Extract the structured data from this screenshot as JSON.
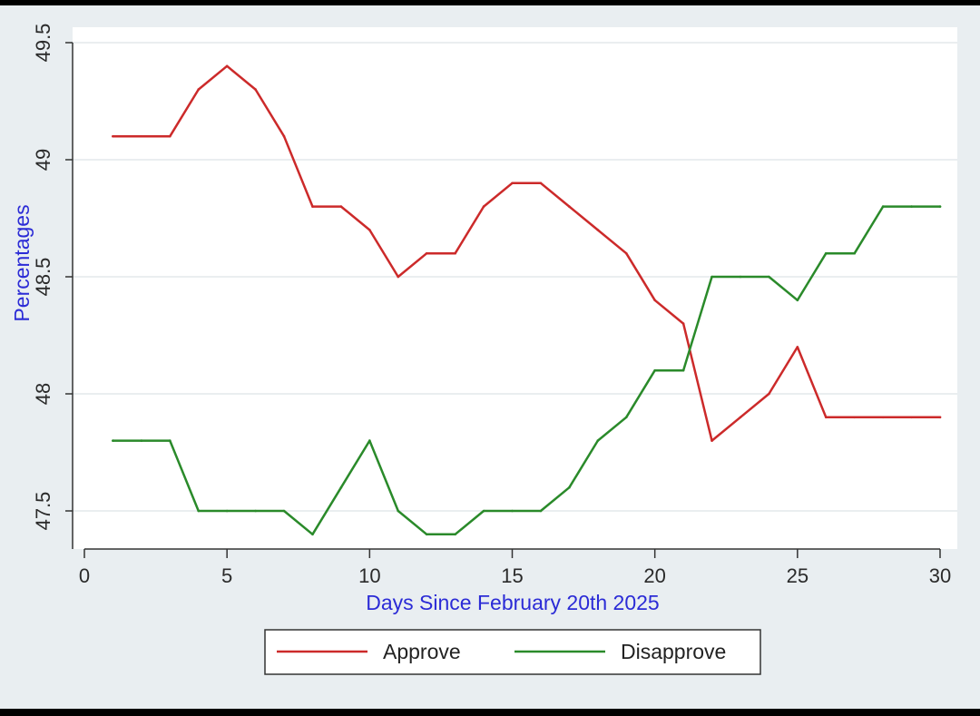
{
  "chart_data": {
    "type": "line",
    "title": "",
    "xlabel": "Days Since February 20th 2025",
    "ylabel": "Percentages",
    "xlim": [
      0,
      30
    ],
    "ylim": [
      47.35,
      49.55
    ],
    "xticks": [
      0,
      5,
      10,
      15,
      20,
      25,
      30
    ],
    "xtick_labels": [
      "0",
      "5",
      "10",
      "15",
      "20",
      "25",
      "30"
    ],
    "yticks": [
      47.5,
      48,
      48.5,
      49,
      49.5
    ],
    "ytick_labels": [
      "47.5",
      "48",
      "48.5",
      "49",
      "49.5"
    ],
    "grid": true,
    "legend_position": "bottom",
    "x": [
      1,
      2,
      3,
      4,
      5,
      6,
      7,
      8,
      9,
      10,
      11,
      12,
      13,
      14,
      15,
      16,
      17,
      18,
      19,
      20,
      21,
      22,
      23,
      24,
      25,
      26,
      27,
      28,
      29,
      30
    ],
    "series": [
      {
        "name": "Approve",
        "color": "#cc2a2a",
        "values": [
          49.1,
          49.1,
          49.1,
          49.3,
          49.4,
          49.3,
          49.1,
          48.8,
          48.8,
          48.7,
          48.5,
          48.6,
          48.6,
          48.8,
          48.9,
          48.9,
          48.8,
          48.7,
          48.6,
          48.4,
          48.3,
          47.8,
          47.9,
          48.0,
          48.2,
          47.9,
          47.9,
          47.9,
          47.9,
          47.9
        ]
      },
      {
        "name": "Disapprove",
        "color": "#2a8a2a",
        "values": [
          47.8,
          47.8,
          47.8,
          47.5,
          47.5,
          47.5,
          47.5,
          47.4,
          47.6,
          47.8,
          47.5,
          47.4,
          47.4,
          47.5,
          47.5,
          47.5,
          47.6,
          47.8,
          47.9,
          48.1,
          48.1,
          48.5,
          48.5,
          48.5,
          48.4,
          48.6,
          48.6,
          48.8,
          48.8,
          48.8
        ]
      }
    ]
  }
}
